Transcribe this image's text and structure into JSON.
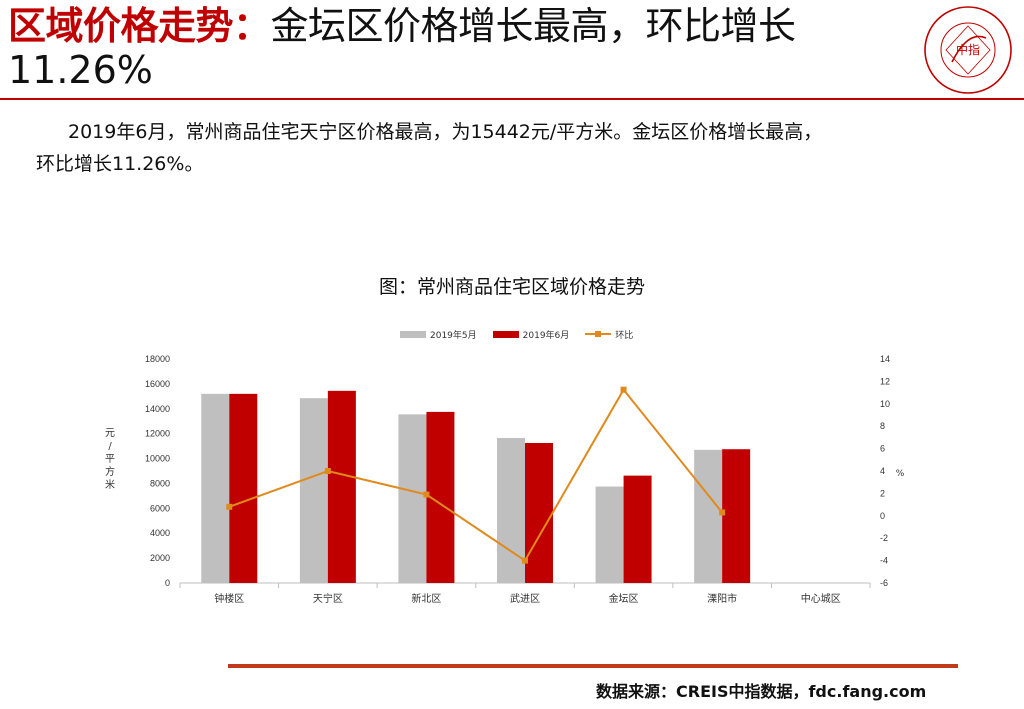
{
  "header": {
    "title_accent": "区域价格走势：",
    "title_rest": "金坛区价格增长最高，环比增长",
    "title_line2": "11.26%",
    "logo_text": "中指"
  },
  "body": {
    "line1": "2019年6月，常州商品住宅天宁区价格最高，为15442元/平方米。金坛区价格增长最高，",
    "line2": "环比增长11.26%。"
  },
  "chart_title": "图：常州商品住宅区域价格走势",
  "footer": {
    "source": "数据来源：CREIS中指数据，fdc.fang.com"
  },
  "colors": {
    "may": "#bfbfbf",
    "june": "#c00000",
    "mom": "#e08a1e",
    "brand": "#c00000"
  },
  "chart_data": {
    "type": "bar",
    "categories": [
      "钟楼区",
      "天宁区",
      "新北区",
      "武进区",
      "金坛区",
      "溧阳市",
      "中心城区"
    ],
    "series": [
      {
        "name": "2019年5月",
        "type": "bar",
        "axis": "left",
        "values": [
          15200,
          14850,
          13550,
          11650,
          7750,
          10700,
          null
        ]
      },
      {
        "name": "2019年6月",
        "type": "bar",
        "axis": "left",
        "values": [
          15200,
          15442,
          13750,
          11250,
          8630,
          10750,
          null
        ]
      },
      {
        "name": "环比",
        "type": "line",
        "axis": "right",
        "values": [
          0.8,
          4.0,
          1.9,
          -4.0,
          11.26,
          0.3,
          null
        ]
      }
    ],
    "ylabel": "元/平方米",
    "ylabel_right": "%",
    "ylim": [
      0,
      18000
    ],
    "ylim_right": [
      -6,
      14
    ],
    "yticks": [
      0,
      2000,
      4000,
      6000,
      8000,
      10000,
      12000,
      14000,
      16000,
      18000
    ],
    "yticks_right": [
      -6,
      -4,
      -2,
      0,
      2,
      4,
      6,
      8,
      10,
      12,
      14
    ],
    "legend_position": "top",
    "grid": false
  }
}
